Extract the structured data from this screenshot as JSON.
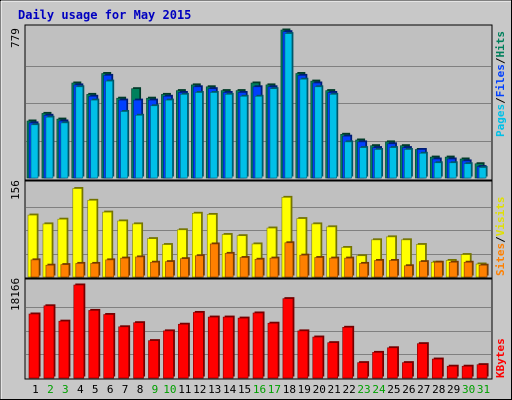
{
  "title": "Daily usage for May 2015",
  "colors": {
    "frame_bg": "#c8c8c8",
    "plot_bg": "#c0c0c0",
    "title": "#0000c0",
    "hits": "#00805c",
    "files": "#0040ff",
    "pages": "#00c0e8",
    "visits": "#ffff00",
    "sites": "#ff8000",
    "kbytes": "#ff0000",
    "weekday_label": "#000000",
    "weekend_label": "#00a000"
  },
  "panels": {
    "hits_files_pages": {
      "max_label": "779"
    },
    "visits_sites": {
      "max_label": "156"
    },
    "kbytes": {
      "max_label": "18166"
    }
  },
  "legend": {
    "pages": "Pages",
    "files": "Files",
    "hits": "Hits",
    "sites": "Sites",
    "visits": "Visits",
    "kbytes": "KBytes",
    "separator": "/"
  },
  "chart_data": {
    "type": "bar",
    "title": "Daily usage for May 2015",
    "categories": [
      "1",
      "2",
      "3",
      "4",
      "5",
      "6",
      "7",
      "8",
      "9",
      "10",
      "11",
      "12",
      "13",
      "14",
      "15",
      "16",
      "17",
      "18",
      "19",
      "20",
      "21",
      "22",
      "23",
      "24",
      "25",
      "26",
      "27",
      "28",
      "29",
      "30",
      "31"
    ],
    "weekend_days": [
      "2",
      "3",
      "9",
      "10",
      "16",
      "17",
      "23",
      "24",
      "30",
      "31"
    ],
    "panels": [
      {
        "name": "hits_files_pages",
        "ylim": [
          0,
          779
        ],
        "series": [
          {
            "name": "Hits",
            "values": [
              300,
              340,
              310,
              500,
              440,
              550,
              420,
              470,
              420,
              440,
              460,
              490,
              480,
              460,
              460,
              500,
              490,
              779,
              550,
              510,
              460,
              230,
              200,
              170,
              190,
              170,
              150,
              110,
              110,
              100,
              75
            ]
          },
          {
            "name": "Files",
            "values": [
              290,
              330,
              300,
              490,
              430,
              540,
              410,
              410,
              410,
              430,
              450,
              480,
              470,
              450,
              450,
              480,
              480,
              770,
              540,
              500,
              450,
              220,
              190,
              160,
              180,
              160,
              150,
              100,
              100,
              90,
              60
            ]
          },
          {
            "name": "Pages",
            "values": [
              280,
              320,
              290,
              480,
              410,
              510,
              350,
              330,
              380,
              410,
              440,
              450,
              450,
              440,
              430,
              430,
              470,
              760,
              520,
              480,
              440,
              190,
              160,
              150,
              160,
              150,
              130,
              80,
              80,
              75,
              55
            ]
          }
        ]
      },
      {
        "name": "visits_sites",
        "ylim": [
          0,
          156
        ],
        "series": [
          {
            "name": "Visits",
            "values": [
              105,
              90,
              98,
              150,
              130,
              110,
              95,
              90,
              65,
              55,
              80,
              108,
              106,
              72,
              70,
              56,
              83,
              135,
              99,
              90,
              85,
              50,
              36,
              63,
              68,
              63,
              55,
              25,
              28,
              38,
              22
            ]
          },
          {
            "name": "Sites",
            "values": [
              29,
              20,
              21,
              23,
              23,
              29,
              32,
              34,
              25,
              26,
              31,
              36,
              56,
              40,
              33,
              30,
              32,
              58,
              37,
              33,
              32,
              32,
              23,
              28,
              28,
              19,
              26,
              25,
              25,
              25,
              20
            ]
          }
        ]
      },
      {
        "name": "kbytes",
        "ylim": [
          0,
          18166
        ],
        "series": [
          {
            "name": "KBytes",
            "values": [
              12500,
              14100,
              11100,
              18166,
              13200,
              12400,
              10000,
              10800,
              7300,
              9200,
              10500,
              12800,
              11900,
              11900,
              11700,
              12700,
              10700,
              15500,
              9200,
              8000,
              6900,
              9900,
              3000,
              5000,
              5900,
              3000,
              6700,
              3700,
              2300,
              2300,
              2600
            ]
          }
        ]
      }
    ]
  }
}
